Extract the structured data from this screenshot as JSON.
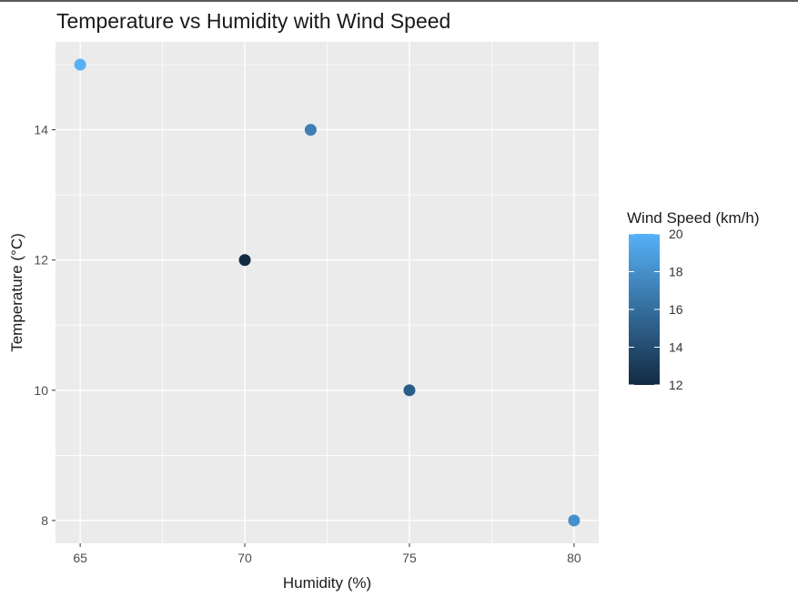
{
  "chart_data": {
    "type": "scatter",
    "title": "Temperature vs Humidity with Wind Speed",
    "xlabel": "Humidity (%)",
    "ylabel": "Temperature (°C)",
    "xlim": [
      64.25,
      80.75
    ],
    "ylim": [
      7.65,
      15.35
    ],
    "x_ticks": [
      65,
      70,
      75,
      80
    ],
    "y_ticks": [
      8,
      10,
      12,
      14
    ],
    "grid": true,
    "points": [
      {
        "x": 65,
        "y": 15,
        "wind": 20
      },
      {
        "x": 72,
        "y": 14,
        "wind": 17
      },
      {
        "x": 70,
        "y": 12,
        "wind": 12
      },
      {
        "x": 75,
        "y": 10,
        "wind": 15
      },
      {
        "x": 80,
        "y": 8,
        "wind": 18
      }
    ],
    "legend": {
      "title": "Wind Speed (km/h)",
      "placement": "right",
      "range": [
        12,
        20
      ],
      "ticks": [
        12,
        14,
        16,
        18,
        20
      ],
      "color_low": "#132B43",
      "color_high": "#56B1F7"
    },
    "colors": {
      "panel": "#EBEBEB",
      "grid": "#FFFFFF"
    }
  }
}
